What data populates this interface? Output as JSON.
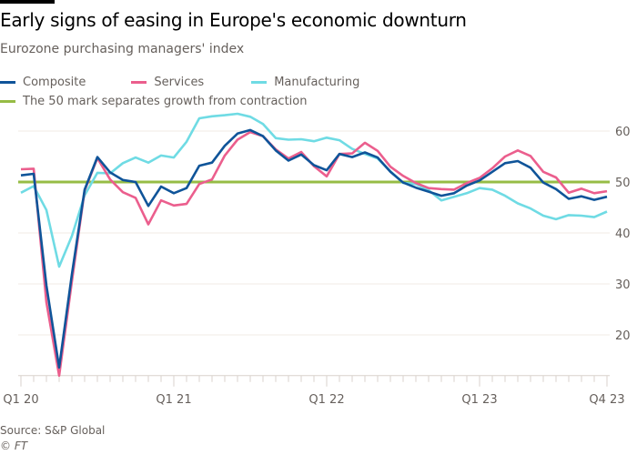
{
  "chart_data": {
    "type": "line",
    "title": "Early signs of easing in Europe's economic downturn",
    "subtitle": "Eurozone purchasing managers' index",
    "xlabel": "",
    "ylabel": "",
    "x_start": "2020-01",
    "x_frequency": "monthly",
    "x_tick_labels": [
      {
        "label": "Q1 20",
        "month": "2020-01"
      },
      {
        "label": "Q1 21",
        "month": "2021-01"
      },
      {
        "label": "Q1 22",
        "month": "2022-01"
      },
      {
        "label": "Q1 23",
        "month": "2023-01"
      },
      {
        "label": "Q4 23",
        "month": "2023-11"
      }
    ],
    "y_ticks": [
      20,
      30,
      40,
      50,
      60
    ],
    "ylim": [
      12,
      62
    ],
    "y_axis_side": "right",
    "grid": true,
    "legend_position": "top-left",
    "series": [
      {
        "name": "Composite",
        "color": "#0f5499",
        "values": [
          51.3,
          51.6,
          29.7,
          13.6,
          31.9,
          48.5,
          54.9,
          51.9,
          50.4,
          50.0,
          45.3,
          49.1,
          47.8,
          48.8,
          53.2,
          53.8,
          57.1,
          59.5,
          60.2,
          59.0,
          56.2,
          54.2,
          55.4,
          53.3,
          52.3,
          55.5,
          54.9,
          55.8,
          54.8,
          52.0,
          49.9,
          48.9,
          48.1,
          47.3,
          47.8,
          49.3,
          50.3,
          52.0,
          53.7,
          54.1,
          52.8,
          49.9,
          48.6,
          46.7,
          47.2,
          46.5,
          47.1
        ]
      },
      {
        "name": "Services",
        "color": "#eb5e8d",
        "values": [
          52.5,
          52.6,
          26.4,
          12.0,
          30.5,
          48.3,
          54.7,
          50.5,
          48.0,
          46.9,
          41.7,
          46.4,
          45.4,
          45.7,
          49.6,
          50.5,
          55.2,
          58.3,
          59.8,
          59.0,
          56.4,
          54.6,
          55.9,
          53.1,
          51.1,
          55.5,
          55.6,
          57.7,
          56.1,
          53.0,
          51.2,
          49.8,
          48.8,
          48.6,
          48.5,
          49.8,
          50.8,
          52.7,
          55.0,
          56.2,
          55.1,
          52.0,
          50.9,
          47.9,
          48.7,
          47.8,
          48.2
        ]
      },
      {
        "name": "Manufacturing",
        "color": "#6fdbe4",
        "values": [
          47.9,
          49.2,
          44.5,
          33.4,
          39.4,
          47.4,
          51.8,
          51.7,
          53.7,
          54.8,
          53.8,
          55.2,
          54.8,
          57.9,
          62.5,
          62.9,
          63.1,
          63.4,
          62.8,
          61.4,
          58.6,
          58.3,
          58.4,
          58.0,
          58.7,
          58.2,
          56.5,
          55.5,
          54.6,
          52.1,
          49.8,
          49.6,
          48.4,
          46.4,
          47.1,
          47.8,
          48.8,
          48.5,
          47.3,
          45.8,
          44.8,
          43.4,
          42.7,
          43.5,
          43.4,
          43.1,
          44.2
        ]
      }
    ],
    "reference_line": {
      "value": 50,
      "label": "The 50 mark separates growth from contraction",
      "color": "#96bc45"
    },
    "source": "Source: S&P Global",
    "credit": "© FT"
  }
}
